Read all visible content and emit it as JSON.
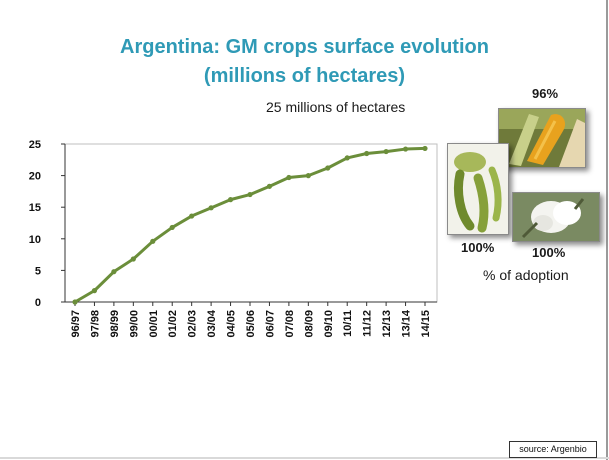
{
  "slide": {
    "title_line1": "Argentina: GM crops surface evolution",
    "title_line2": "(millions of hectares)",
    "headline_label": "25 millions of hectares",
    "source": "source: Argenbio"
  },
  "adoption": {
    "maize_pct": "96%",
    "soy_pct": "100%",
    "cotton_pct": "100%",
    "caption": "% of adoption",
    "icons": [
      "maize-photo-icon",
      "soybean-photo-icon",
      "cotton-photo-icon"
    ]
  },
  "chart_data": {
    "type": "line",
    "categories": [
      "96/97",
      "97/98",
      "98/99",
      "99/00",
      "00/01",
      "01/02",
      "02/03",
      "03/04",
      "04/05",
      "05/06",
      "06/07",
      "07/08",
      "08/09",
      "09/10",
      "10/11",
      "11/12",
      "12/13",
      "13/14",
      "14/15"
    ],
    "values": [
      0,
      1.8,
      4.8,
      6.8,
      9.6,
      11.8,
      13.6,
      14.9,
      16.2,
      17.0,
      18.3,
      19.7,
      20.0,
      21.2,
      22.8,
      23.5,
      23.8,
      24.2,
      24.3
    ],
    "yticks": [
      0,
      5,
      10,
      15,
      20,
      25
    ],
    "ylim": [
      0,
      25
    ],
    "title": "",
    "xlabel": "",
    "ylabel": "",
    "grid": false,
    "line_color": "#6b8e3a",
    "axis_box_color": "#bfbfbf"
  }
}
